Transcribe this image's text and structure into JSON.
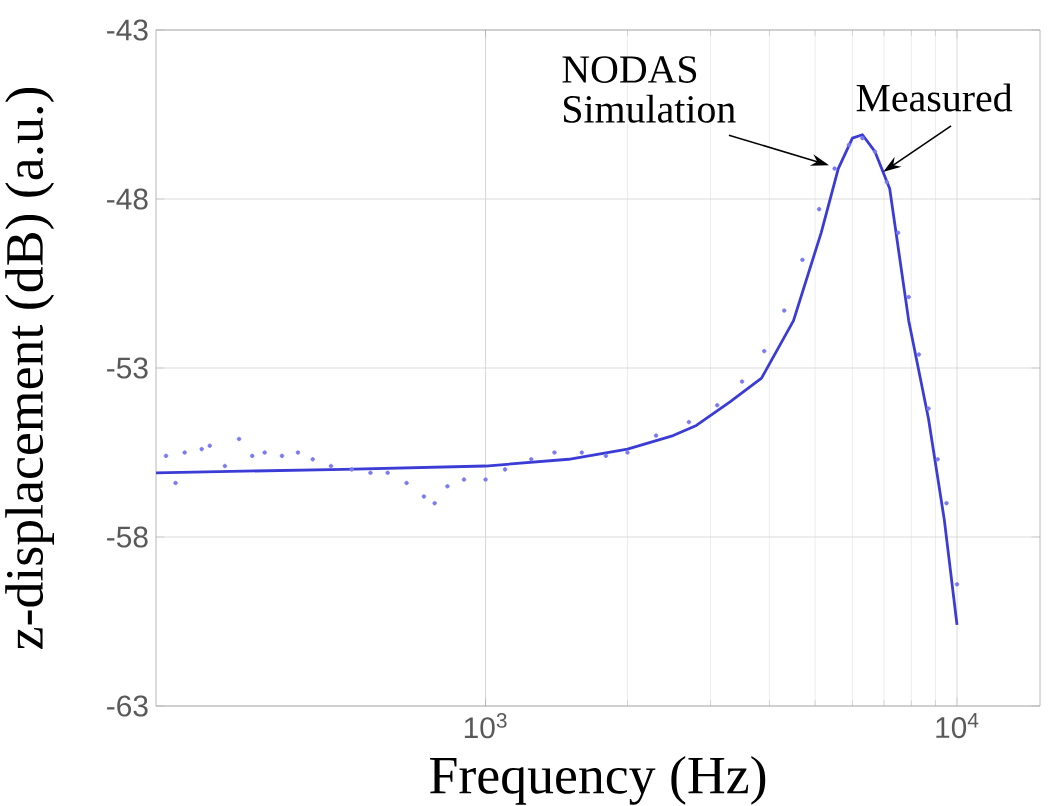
{
  "chart_data": {
    "type": "line",
    "xlabel": "Frequency (Hz)",
    "ylabel": "z-displacement (dB) (a.u.)",
    "log": "x",
    "grid": true,
    "xlim": [
      200,
      15000
    ],
    "xticks": [
      {
        "value": 1000,
        "label": "10$^{3}$"
      },
      {
        "value": 10000,
        "label": "10$^{4}$"
      }
    ],
    "ylim": [
      -63,
      -43
    ],
    "yticks": [
      -63,
      -58,
      -53,
      -48,
      -43
    ],
    "series": [
      {
        "color": "#3b3bd6",
        "line_style": "solid",
        "x": [
          200,
          500,
          1000,
          1500,
          2000,
          2500,
          2800,
          3300,
          3850,
          4500,
          5150,
          5600,
          6000,
          6300,
          6700,
          7200,
          7900,
          8700,
          9400,
          10000
        ],
        "values": [
          -56.1,
          -56.0,
          -55.9,
          -55.7,
          -55.4,
          -55.0,
          -54.7,
          -54.0,
          -53.3,
          -51.6,
          -49.0,
          -47.1,
          -46.2,
          -46.1,
          -46.6,
          -47.7,
          -51.6,
          -54.5,
          -57.5,
          -60.6
        ]
      },
      {
        "type": "scatter",
        "color": "#7a7af0",
        "marker": "circle",
        "x": [
          210,
          220,
          230,
          250,
          260,
          280,
          300,
          320,
          340,
          370,
          400,
          430,
          470,
          520,
          570,
          620,
          680,
          740,
          780,
          830,
          900,
          1000,
          1100,
          1250,
          1400,
          1600,
          1800,
          2000,
          2300,
          2700,
          3100,
          3500,
          3900,
          4300,
          4700,
          5100,
          5500,
          5900,
          6300,
          6700,
          7100,
          7500,
          7900,
          8300,
          8700,
          9100,
          9500,
          10000
        ],
        "values": [
          -55.6,
          -56.4,
          -55.5,
          -55.4,
          -55.3,
          -55.9,
          -55.1,
          -55.6,
          -55.5,
          -55.6,
          -55.5,
          -55.7,
          -55.9,
          -56.0,
          -56.1,
          -56.1,
          -56.4,
          -56.8,
          -57.0,
          -56.5,
          -56.3,
          -56.3,
          -56.0,
          -55.7,
          -55.5,
          -55.5,
          -55.6,
          -55.5,
          -55.0,
          -54.6,
          -54.1,
          -53.4,
          -52.5,
          -51.3,
          -49.8,
          -48.3,
          -47.1,
          -46.4,
          -46.2,
          -46.6,
          -47.5,
          -49.0,
          -50.9,
          -52.6,
          -54.2,
          -55.7,
          -57.0,
          -59.4
        ]
      }
    ],
    "annotations": [
      {
        "text": "NODAS Simulation",
        "x": 5350,
        "y": -47.0
      },
      {
        "text": "Measured",
        "x": 6970,
        "y": -47.2
      }
    ]
  }
}
